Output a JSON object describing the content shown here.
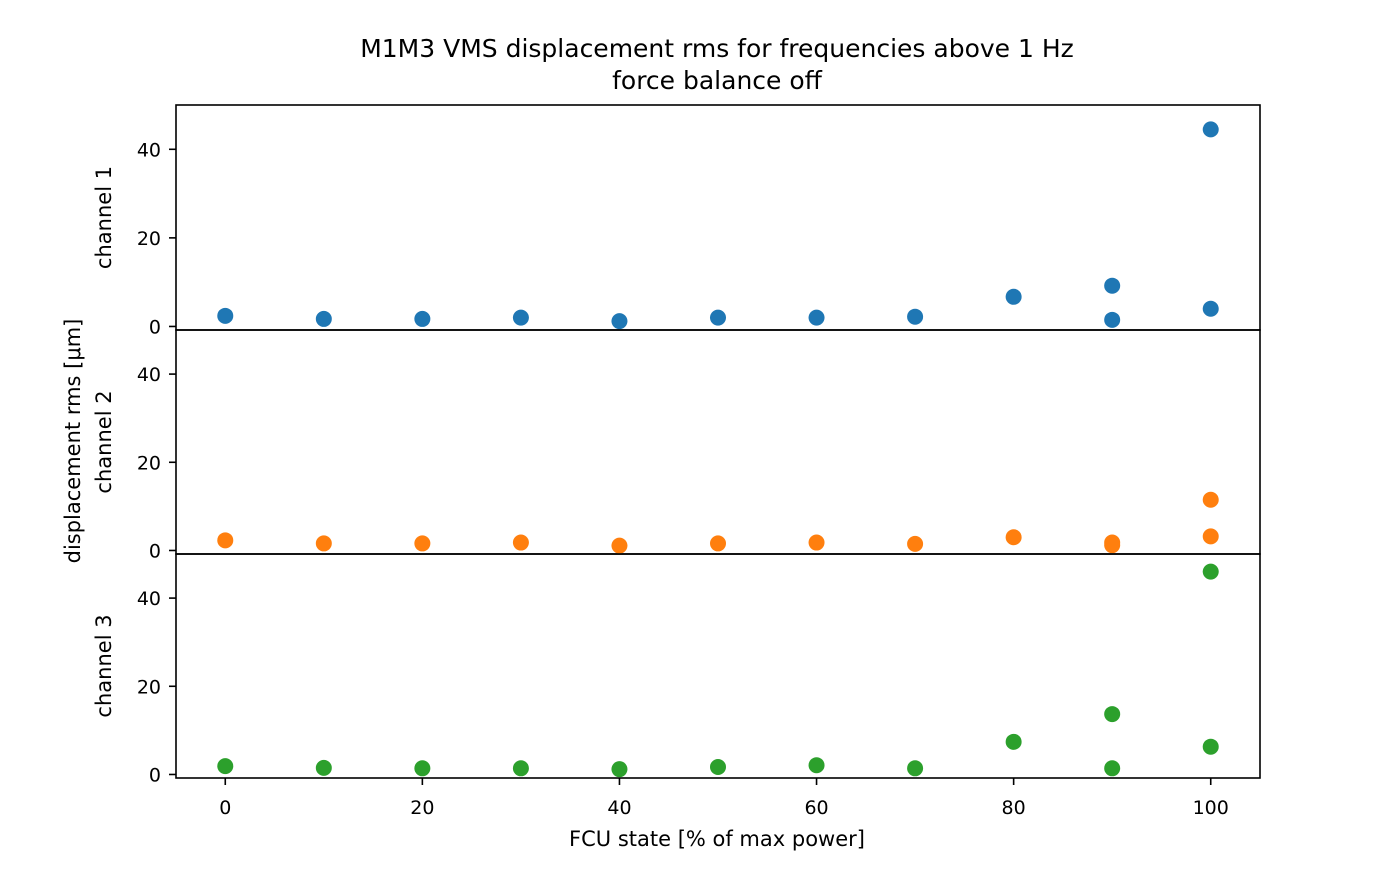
{
  "chart_data": {
    "type": "scatter",
    "title": "M1M3 VMS displacement rms for frequencies above 1 Hz",
    "subtitle": "force balance off",
    "xlabel": "FCU state [% of max power]",
    "ylabel": "displacement rms [μm]",
    "xlim": [
      -5,
      105
    ],
    "ylim": [
      -0.8,
      50
    ],
    "x_ticks": [
      0,
      20,
      40,
      60,
      80,
      100
    ],
    "y_ticks": [
      0,
      20,
      40
    ],
    "grid": false,
    "legend": "none",
    "panels": [
      {
        "name": "channel 1",
        "color": "#1f77b4",
        "x": [
          0,
          10,
          20,
          30,
          40,
          50,
          60,
          70,
          80,
          90,
          90,
          100,
          100
        ],
        "y": [
          2.4,
          1.7,
          1.7,
          2.0,
          1.2,
          2.0,
          2.0,
          2.2,
          6.7,
          9.2,
          1.5,
          4.0,
          44.5
        ]
      },
      {
        "name": "channel 2",
        "color": "#ff7f0e",
        "x": [
          0,
          10,
          20,
          30,
          40,
          50,
          60,
          70,
          80,
          90,
          90,
          100,
          100
        ],
        "y": [
          2.3,
          1.6,
          1.6,
          1.8,
          1.1,
          1.6,
          1.8,
          1.5,
          3.0,
          1.8,
          1.2,
          3.2,
          11.5
        ]
      },
      {
        "name": "channel 3",
        "color": "#2ca02c",
        "x": [
          0,
          10,
          20,
          30,
          40,
          50,
          60,
          70,
          80,
          90,
          90,
          100,
          100
        ],
        "y": [
          1.9,
          1.5,
          1.4,
          1.4,
          1.2,
          1.7,
          2.1,
          1.4,
          7.4,
          13.7,
          1.4,
          6.3,
          46.0
        ]
      }
    ]
  }
}
